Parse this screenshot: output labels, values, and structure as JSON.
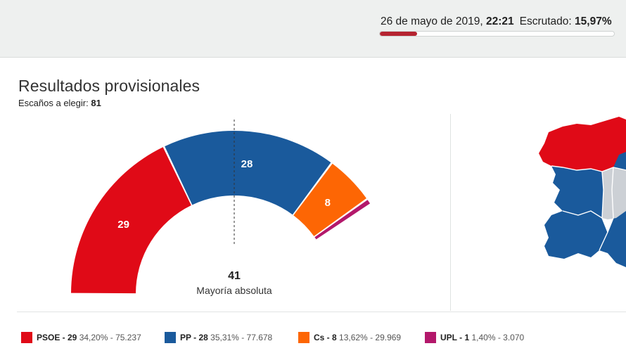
{
  "status": {
    "date": "26 de mayo de 2019,",
    "time": "22:21",
    "scrutiny_label": "Escrutado:",
    "scrutiny_value": "15,97%",
    "scrutiny_progress": 0.1597,
    "progress_color": "#b52431"
  },
  "results": {
    "title": "Resultados provisionales",
    "seats_label": "Escaños a elegir:",
    "seats_total": "81",
    "majority_number": "41",
    "majority_label": "Mayoría absoluta"
  },
  "chart_data": {
    "type": "pie",
    "subtype": "parliament-hemicycle",
    "total_seats": 81,
    "majority": 41,
    "categories": [
      "PSOE",
      "PP",
      "Cs",
      "UPL"
    ],
    "values": [
      29,
      28,
      8,
      1
    ],
    "series": [
      {
        "name": "PSOE",
        "seats": 29,
        "color": "#e00a17",
        "label": "29"
      },
      {
        "name": "PP",
        "seats": 28,
        "color": "#1a5a9c",
        "label": "28"
      },
      {
        "name": "Cs",
        "seats": 8,
        "color": "#fd6604",
        "label": "8"
      },
      {
        "name": "UPL",
        "seats": 1,
        "color": "#b3186b",
        "label": ""
      }
    ]
  },
  "legend": [
    {
      "party": "PSOE - 29",
      "detail": "34,20% - 75.237",
      "color": "#e00a17"
    },
    {
      "party": "PP - 28",
      "detail": "35,31% - 77.678",
      "color": "#1a5a9c"
    },
    {
      "party": "Cs - 8",
      "detail": "13,62% - 29.969",
      "color": "#fd6604"
    },
    {
      "party": "UPL - 1",
      "detail": "1,40% - 3.070",
      "color": "#b3186b"
    }
  ],
  "map": {
    "colors": {
      "psoe": "#e00a17",
      "pp": "#1a5a9c",
      "other": "#ccd0d5"
    }
  }
}
